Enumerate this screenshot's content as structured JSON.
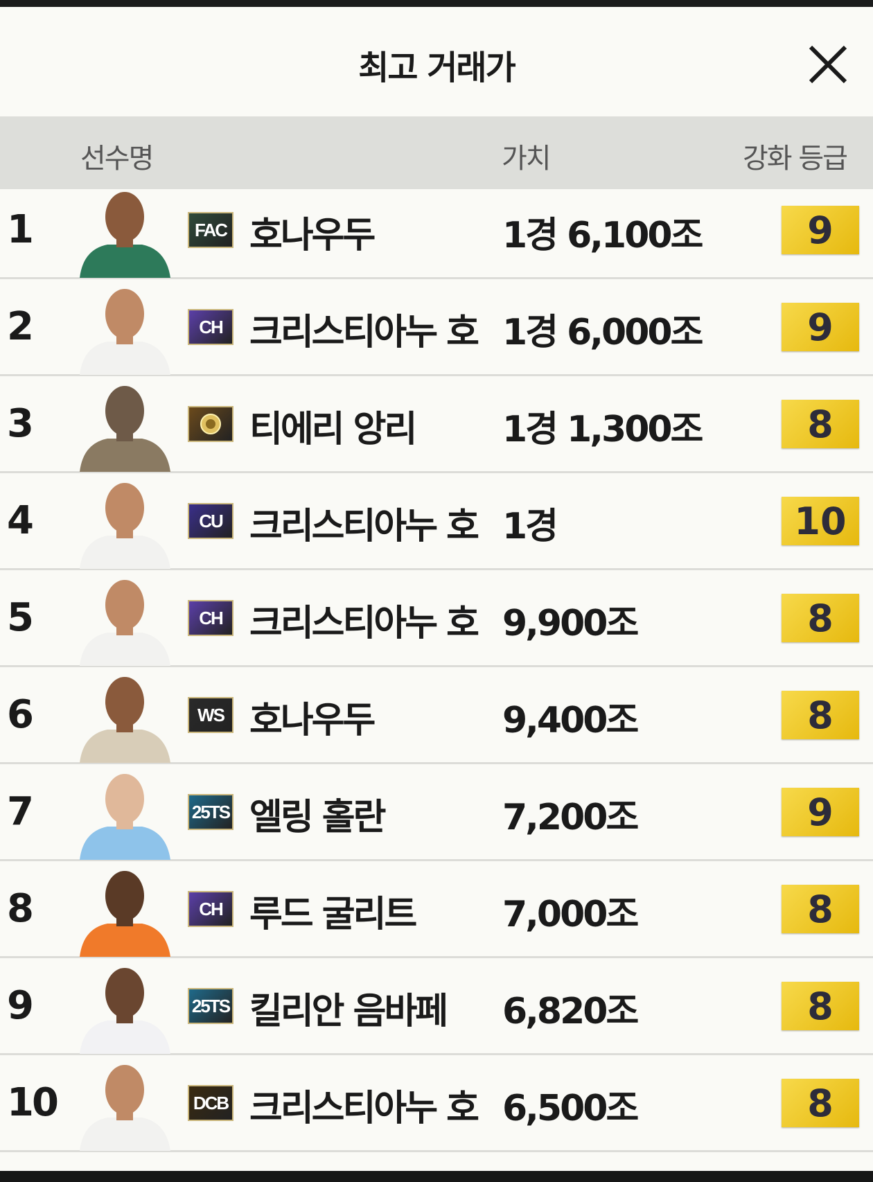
{
  "header": {
    "title": "최고 거래가",
    "close_icon": "close-icon"
  },
  "columns": {
    "player": "선수명",
    "value": "가치",
    "grade": "강화 등급"
  },
  "rows": [
    {
      "rank": "1",
      "season": "FAC",
      "name": "호나우두",
      "value": "1경 6,100조",
      "grade": "9",
      "badge_color": "#2f4a3a",
      "jersey": "#2d7a5a",
      "skin": "#8a5a3c"
    },
    {
      "rank": "2",
      "season": "CH",
      "name": "크리스티아누 호",
      "value": "1경 6,000조",
      "grade": "9",
      "badge_color": "#5b3fa8",
      "jersey": "#f2f2f0",
      "skin": "#c08a66"
    },
    {
      "rank": "3",
      "season": "ICON",
      "name": "티에리 앙리",
      "value": "1경 1,300조",
      "grade": "8",
      "badge_color": "#6b4a1c",
      "jersey": "#8a7a62",
      "skin": "#6e5a48"
    },
    {
      "rank": "4",
      "season": "CU",
      "name": "크리스티아누 호",
      "value": "1경",
      "grade": "10",
      "badge_color": "#3a2f8a",
      "jersey": "#f2f2f0",
      "skin": "#c08a66"
    },
    {
      "rank": "5",
      "season": "CH",
      "name": "크리스티아누 호",
      "value": "9,900조",
      "grade": "8",
      "badge_color": "#5b3fa8",
      "jersey": "#f2f2f0",
      "skin": "#c08a66"
    },
    {
      "rank": "6",
      "season": "WS",
      "name": "호나우두",
      "value": "9,400조",
      "grade": "8",
      "badge_color": "#2a2a2a",
      "jersey": "#d8cdb8",
      "skin": "#8a5a3c"
    },
    {
      "rank": "7",
      "season": "25TS",
      "name": "엘링 홀란",
      "value": "7,200조",
      "grade": "9",
      "badge_color": "#1f6a8a",
      "jersey": "#8ec3ea",
      "skin": "#e0b89a"
    },
    {
      "rank": "8",
      "season": "CH",
      "name": "루드 굴리트",
      "value": "7,000조",
      "grade": "8",
      "badge_color": "#5b3fa8",
      "jersey": "#f07a2a",
      "skin": "#5a3a26"
    },
    {
      "rank": "9",
      "season": "25TS",
      "name": "킬리안 음바페",
      "value": "6,820조",
      "grade": "8",
      "badge_color": "#1f6a8a",
      "jersey": "#f2f2f4",
      "skin": "#6a4630"
    },
    {
      "rank": "10",
      "season": "DCB",
      "name": "크리스티아누 호",
      "value": "6,500조",
      "grade": "8",
      "badge_color": "#3a2a10",
      "jersey": "#f2f2f0",
      "skin": "#c08a66"
    }
  ]
}
